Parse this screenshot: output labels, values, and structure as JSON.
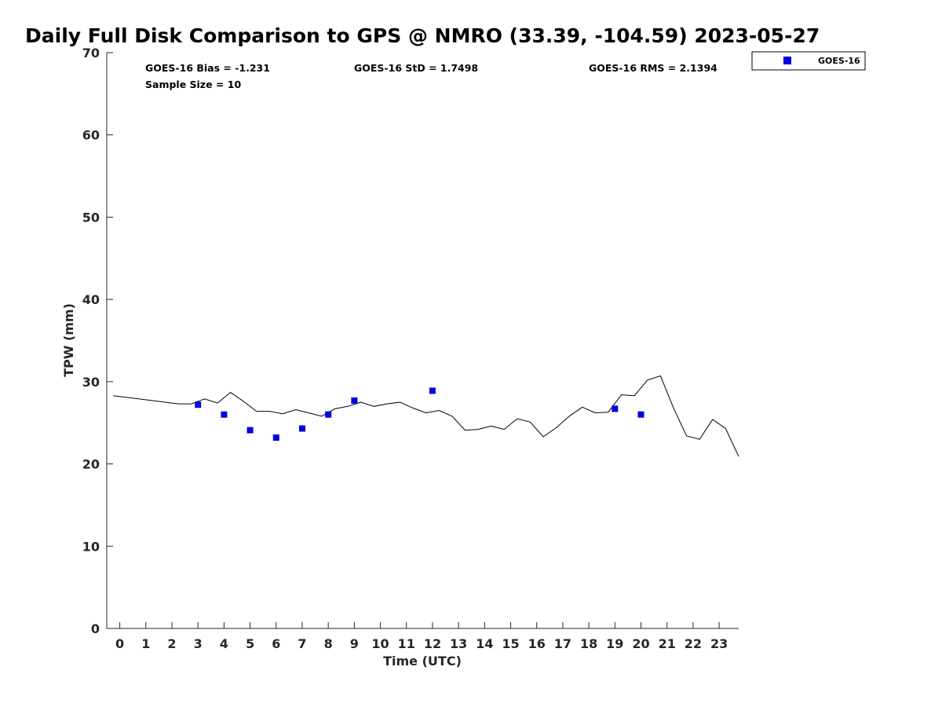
{
  "chart_data": {
    "type": "line",
    "title": "Daily Full Disk Comparison to GPS @ NMRO (33.39, -104.59) 2023-05-27",
    "xlabel": "Time (UTC)",
    "ylabel": "TPW (mm)",
    "xlim": [
      -0.5,
      23.75
    ],
    "ylim": [
      0,
      70
    ],
    "x_ticks": [
      0,
      1,
      2,
      3,
      4,
      5,
      6,
      7,
      8,
      9,
      10,
      11,
      12,
      13,
      14,
      15,
      16,
      17,
      18,
      19,
      20,
      21,
      22,
      23
    ],
    "y_ticks": [
      0,
      10,
      20,
      30,
      40,
      50,
      60,
      70
    ],
    "grid": false,
    "legend_position": "outside-top-right",
    "stats": {
      "bias": "GOES-16 Bias = -1.231",
      "std": "GOES-16 StD = 1.7498",
      "rms": "GOES-16 RMS = 2.1394",
      "sample_size": "Sample Size = 10"
    },
    "series": [
      {
        "name": "",
        "kind": "line",
        "color": "#000000",
        "x": [
          -0.25,
          2.25,
          2.75,
          3.25,
          3.75,
          4.25,
          4.75,
          5.25,
          5.75,
          6.25,
          6.75,
          7.25,
          7.75,
          8.25,
          8.75,
          9.25,
          9.75,
          10.25,
          10.75,
          11.25,
          11.75,
          12.25,
          12.75,
          13.25,
          13.75,
          14.25,
          14.75,
          15.25,
          15.75,
          16.25,
          16.75,
          17.25,
          17.75,
          18.25,
          18.75,
          19.25,
          19.75,
          20.25,
          20.75,
          21.25,
          21.75,
          22.25,
          22.75,
          23.25,
          23.75
        ],
        "values": [
          28.3,
          27.3,
          27.3,
          27.9,
          27.4,
          28.7,
          27.6,
          26.4,
          26.4,
          26.1,
          26.6,
          26.2,
          25.8,
          26.7,
          27.0,
          27.5,
          27.0,
          27.3,
          27.5,
          26.8,
          26.2,
          26.5,
          25.8,
          24.1,
          24.2,
          24.6,
          24.2,
          25.5,
          25.1,
          23.3,
          24.4,
          25.8,
          26.9,
          26.2,
          26.3,
          28.4,
          28.3,
          30.2,
          30.7,
          26.8,
          23.4,
          23.0,
          25.4,
          24.3,
          20.9
        ]
      },
      {
        "name": "GOES-16",
        "kind": "scatter",
        "marker": "square",
        "color": "#0000dd",
        "x": [
          3,
          4,
          5,
          6,
          7,
          8,
          9,
          12,
          19,
          20
        ],
        "values": [
          27.2,
          26.0,
          24.1,
          23.2,
          24.3,
          26.0,
          27.7,
          28.9,
          26.7,
          26.0
        ]
      }
    ]
  }
}
